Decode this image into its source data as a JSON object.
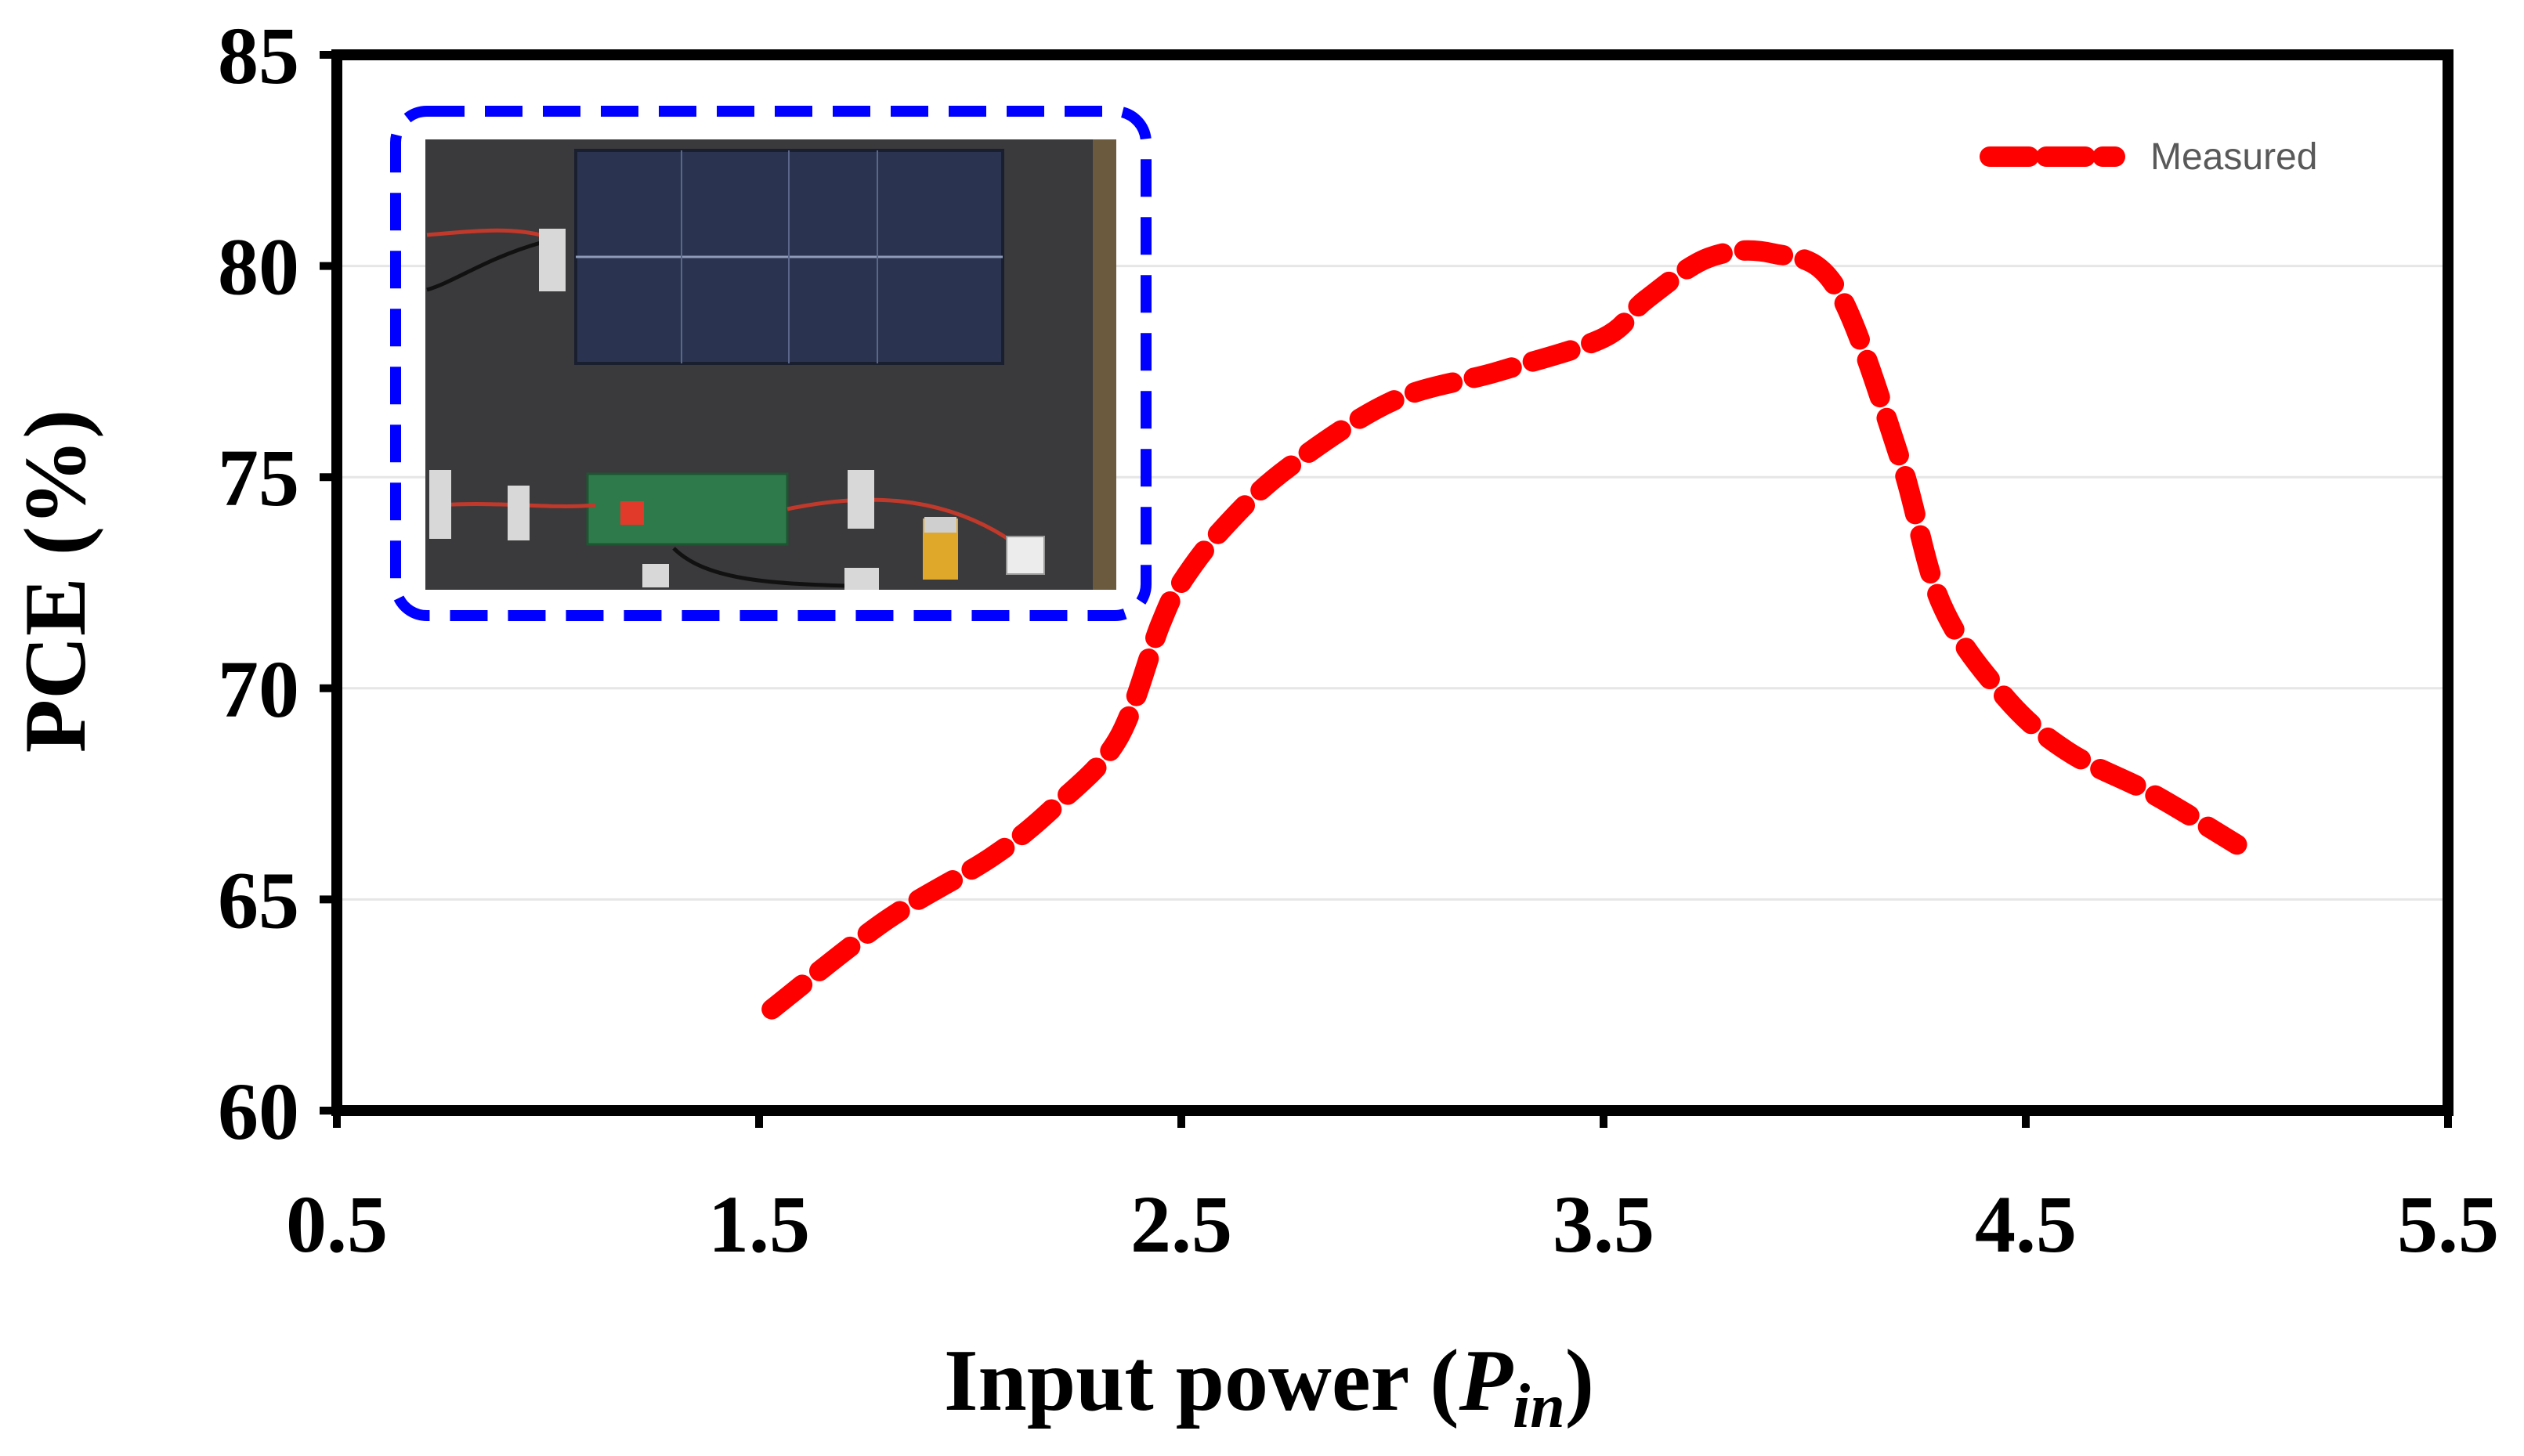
{
  "chart_data": {
    "type": "line",
    "title": "",
    "xlabel": "Input power (",
    "xlabel_symbol": "P",
    "xlabel_subscript": "in",
    "xlabel_close": ")",
    "ylabel": "PCE (%)",
    "xlim": [
      0.5,
      5.5
    ],
    "ylim": [
      60,
      85
    ],
    "xticks": [
      "0.5",
      "1.5",
      "2.5",
      "3.5",
      "4.5",
      "5.5"
    ],
    "yticks": [
      "60",
      "65",
      "70",
      "75",
      "80",
      "85"
    ],
    "grid": "horizontal",
    "legend_position": "top-right",
    "series": [
      {
        "name": "Measured",
        "color": "#ff0000",
        "line_style": "dashed",
        "x": [
          1.53,
          1.8,
          2.05,
          2.2,
          2.35,
          2.45,
          2.5,
          2.6,
          2.75,
          3.0,
          3.25,
          3.5,
          3.6,
          3.75,
          3.9,
          4.05,
          4.2,
          4.3,
          4.45,
          4.6,
          4.8,
          5.0
        ],
        "y": [
          62.4,
          64.5,
          66.0,
          67.2,
          68.8,
          71.5,
          72.5,
          73.8,
          75.2,
          76.8,
          77.5,
          78.3,
          79.2,
          80.2,
          80.3,
          79.5,
          75.5,
          72.0,
          69.8,
          68.5,
          67.5,
          66.3
        ]
      }
    ],
    "inset": {
      "description": "photo",
      "border_color": "#0000ff"
    }
  }
}
